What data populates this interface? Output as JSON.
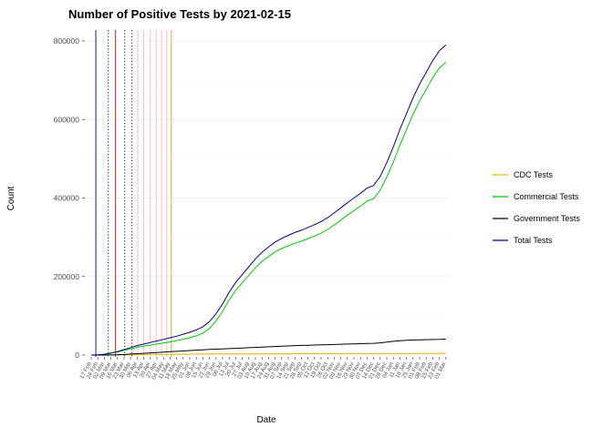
{
  "chart_data": {
    "type": "line",
    "title": "Number of Positive Tests by  2021-02-15",
    "xlabel": "Date",
    "ylabel": "Count",
    "ylim": [
      0,
      800000
    ],
    "yticks": [
      0,
      200000,
      400000,
      600000,
      800000
    ],
    "yticks_minor": [
      100000,
      300000,
      500000,
      700000
    ],
    "grid": "faint-horizontal",
    "legend_position": "right",
    "categories": [
      "17 Feb",
      "24 Feb",
      "02 Mar",
      "09 Mar",
      "16 Mar",
      "23 Mar",
      "30 Mar",
      "06 Apr",
      "13 Apr",
      "20 Apr",
      "27 Apr",
      "04 May",
      "11 May",
      "18 May",
      "25 May",
      "01 Jun",
      "08 Jun",
      "15 Jun",
      "22 Jun",
      "29 Jun",
      "06 Jul",
      "13 Jul",
      "20 Jul",
      "27 Jul",
      "03 Aug",
      "10 Aug",
      "17 Aug",
      "24 Aug",
      "31 Aug",
      "07 Sep",
      "14 Sep",
      "21 Sep",
      "28 Sep",
      "05 Oct",
      "12 Oct",
      "19 Oct",
      "26 Oct",
      "02 Nov",
      "09 Nov",
      "16 Nov",
      "23 Nov",
      "30 Nov",
      "07 Dec",
      "14 Dec",
      "21 Dec",
      "28 Dec",
      "04 Jan",
      "11 Jan",
      "18 Jan",
      "25 Jan",
      "01 Feb",
      "08 Feb",
      "15 Feb",
      "22 Feb",
      "01 Mar"
    ],
    "series": [
      {
        "name": "CDC Tests",
        "color": "#E6B800",
        "values": [
          0,
          0,
          50,
          150,
          300,
          500,
          700,
          900,
          1100,
          1300,
          1500,
          1700,
          1900,
          2100,
          2250,
          2400,
          2500,
          2600,
          2700,
          2800,
          2850,
          2900,
          2950,
          3000,
          3050,
          3100,
          3150,
          3200,
          3250,
          3300,
          3350,
          3400,
          3450,
          3500,
          3520,
          3540,
          3560,
          3580,
          3600,
          3620,
          3640,
          3660,
          3680,
          3700,
          3720,
          3740,
          3760,
          3780,
          3800,
          3820,
          3840,
          3860,
          3880,
          3900,
          3920
        ]
      },
      {
        "name": "Commercial Tests",
        "color": "#00CD00",
        "values": [
          0,
          500,
          1850,
          4550,
          7900,
          12000,
          15800,
          19600,
          22400,
          25200,
          28000,
          30800,
          33600,
          36400,
          40250,
          44100,
          49000,
          55900,
          67800,
          87200,
          111350,
          140600,
          164850,
          184000,
          203150,
          222400,
          238650,
          250800,
          262950,
          271200,
          278450,
          284600,
          290050,
          296500,
          303000,
          310450,
          319950,
          331400,
          343900,
          356400,
          367850,
          379350,
          391800,
          398300,
          420300,
          453250,
          491250,
          534700,
          573700,
          613000,
          647350,
          676950,
          706500,
          731100,
          745600
        ]
      },
      {
        "name": "Government Tests",
        "color": "#000000",
        "values": [
          0,
          0,
          100,
          300,
          800,
          1500,
          2500,
          3500,
          4500,
          5500,
          6500,
          7500,
          8500,
          9500,
          10500,
          11500,
          12500,
          13500,
          14500,
          15000,
          15800,
          16500,
          17200,
          18000,
          18800,
          19500,
          20200,
          21000,
          21800,
          22500,
          23200,
          24000,
          24500,
          25000,
          25500,
          26000,
          26500,
          27000,
          27500,
          28000,
          28500,
          29000,
          29500,
          30000,
          31000,
          33000,
          35000,
          36500,
          37500,
          38200,
          38800,
          39200,
          39600,
          40000,
          40500
        ]
      },
      {
        "name": "Total Tests",
        "color": "#00008B",
        "values": [
          0,
          500,
          2000,
          5000,
          9000,
          14000,
          19000,
          24000,
          28000,
          32000,
          36000,
          40000,
          44000,
          48000,
          53000,
          58000,
          64000,
          72000,
          85000,
          105000,
          130000,
          160000,
          185000,
          205000,
          225000,
          245000,
          262000,
          275000,
          288000,
          297000,
          305000,
          312000,
          318000,
          325000,
          332000,
          340000,
          350000,
          362000,
          375000,
          388000,
          400000,
          412000,
          425000,
          432000,
          455000,
          490000,
          530000,
          575000,
          615000,
          655000,
          690000,
          720000,
          750000,
          775000,
          790000
        ]
      }
    ],
    "vlines": [
      {
        "x_index": 0.7,
        "color": "#00008B",
        "style": "solid"
      },
      {
        "x_index": 2.6,
        "color": "#000000",
        "style": "dotted"
      },
      {
        "x_index": 3.7,
        "color": "#FF0000",
        "style": "solid"
      },
      {
        "x_index": 5.1,
        "color": "#000000",
        "style": "dotted"
      },
      {
        "x_index": 6.2,
        "color": "#000000",
        "style": "dotted"
      },
      {
        "x_index": 7.1,
        "color": "#FFB6C1",
        "style": "solid"
      },
      {
        "x_index": 8.0,
        "color": "#FFB6C1",
        "style": "solid"
      },
      {
        "x_index": 9.0,
        "color": "#FFB6C1",
        "style": "solid"
      },
      {
        "x_index": 9.9,
        "color": "#FFB6C1",
        "style": "solid"
      },
      {
        "x_index": 10.7,
        "color": "#FFB6C1",
        "style": "solid"
      },
      {
        "x_index": 11.5,
        "color": "#FFB6C1",
        "style": "solid"
      },
      {
        "x_index": 12.2,
        "color": "#DAA520",
        "style": "solid"
      }
    ]
  }
}
